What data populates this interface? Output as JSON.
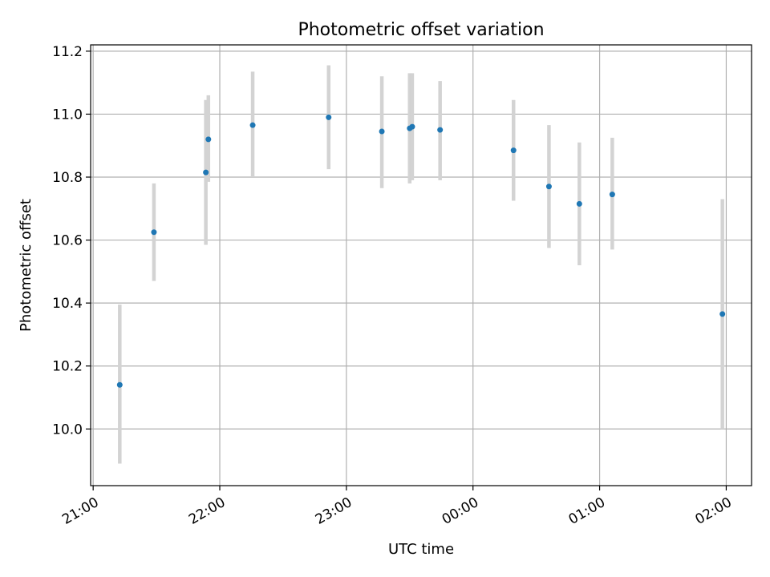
{
  "chart_data": {
    "type": "scatter",
    "title": "Photometric offset variation",
    "xlabel": "UTC time",
    "ylabel": "Photometric offset",
    "x_unit": "hours UTC (times after midnight shown as 24+h)",
    "xlim": [
      20.98,
      26.2
    ],
    "ylim": [
      9.82,
      11.22
    ],
    "grid": true,
    "x_ticks": [
      {
        "value": 21,
        "label": "21:00"
      },
      {
        "value": 22,
        "label": "22:00"
      },
      {
        "value": 23,
        "label": "23:00"
      },
      {
        "value": 24,
        "label": "00:00"
      },
      {
        "value": 25,
        "label": "01:00"
      },
      {
        "value": 26,
        "label": "02:00"
      }
    ],
    "y_ticks": [
      {
        "value": 10.0,
        "label": "10.0"
      },
      {
        "value": 10.2,
        "label": "10.2"
      },
      {
        "value": 10.4,
        "label": "10.4"
      },
      {
        "value": 10.6,
        "label": "10.6"
      },
      {
        "value": 10.8,
        "label": "10.8"
      },
      {
        "value": 11.0,
        "label": "11.0"
      },
      {
        "value": 11.2,
        "label": "11.2"
      }
    ],
    "colors": {
      "point": "#1f77b4",
      "errorbar": "#d3d3d3",
      "grid": "#b0b0b0"
    },
    "points": [
      {
        "x": 21.21,
        "y": 10.14,
        "err_low": 9.89,
        "err_high": 10.395
      },
      {
        "x": 21.48,
        "y": 10.625,
        "err_low": 10.47,
        "err_high": 10.78
      },
      {
        "x": 21.89,
        "y": 10.815,
        "err_low": 10.585,
        "err_high": 11.045
      },
      {
        "x": 21.91,
        "y": 10.92,
        "err_low": 10.785,
        "err_high": 11.06
      },
      {
        "x": 22.26,
        "y": 10.965,
        "err_low": 10.8,
        "err_high": 11.135
      },
      {
        "x": 22.86,
        "y": 10.99,
        "err_low": 10.825,
        "err_high": 11.155
      },
      {
        "x": 23.28,
        "y": 10.945,
        "err_low": 10.765,
        "err_high": 11.12
      },
      {
        "x": 23.5,
        "y": 10.955,
        "err_low": 10.78,
        "err_high": 11.13
      },
      {
        "x": 23.52,
        "y": 10.96,
        "err_low": 10.79,
        "err_high": 11.13
      },
      {
        "x": 23.74,
        "y": 10.95,
        "err_low": 10.79,
        "err_high": 11.105
      },
      {
        "x": 24.32,
        "y": 10.885,
        "err_low": 10.725,
        "err_high": 11.045
      },
      {
        "x": 24.6,
        "y": 10.77,
        "err_low": 10.575,
        "err_high": 10.965
      },
      {
        "x": 24.84,
        "y": 10.715,
        "err_low": 10.52,
        "err_high": 10.91
      },
      {
        "x": 25.1,
        "y": 10.745,
        "err_low": 10.57,
        "err_high": 10.925
      },
      {
        "x": 25.97,
        "y": 10.365,
        "err_low": 10.0,
        "err_high": 10.73
      }
    ]
  }
}
